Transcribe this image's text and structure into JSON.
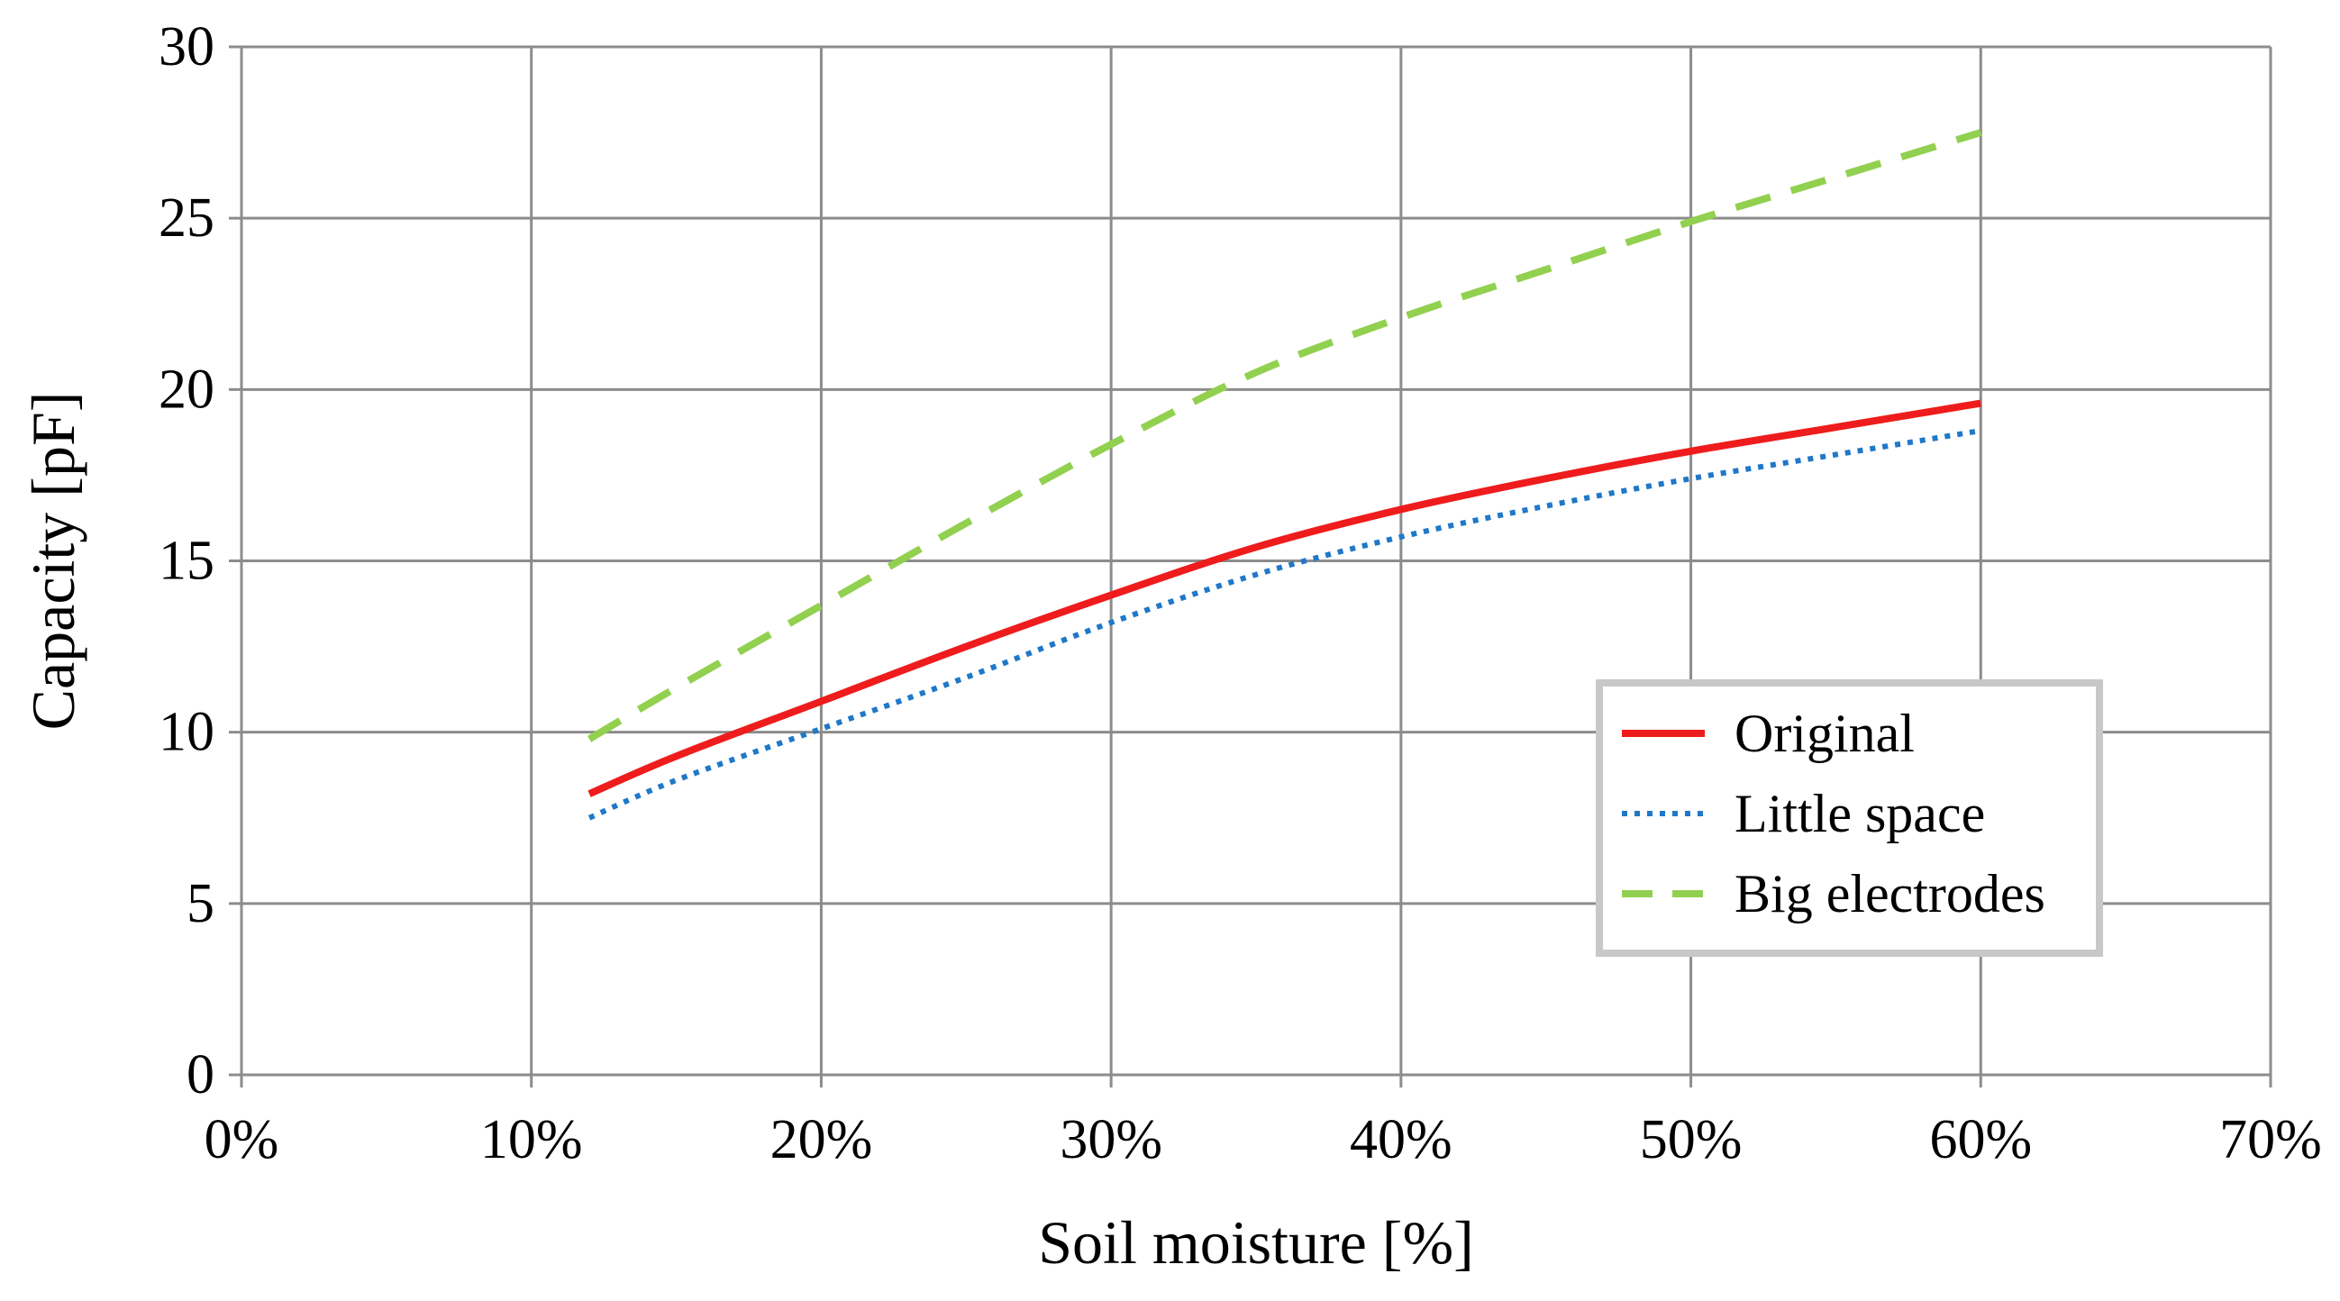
{
  "chart_data": {
    "type": "line",
    "title": "",
    "xlabel": "Soil moisture [%]",
    "ylabel": "Capacity [pF]",
    "xlim": [
      0,
      70
    ],
    "ylim": [
      0,
      30
    ],
    "x_ticks": [
      0,
      10,
      20,
      30,
      40,
      50,
      60,
      70
    ],
    "x_tick_labels": [
      "0%",
      "10%",
      "20%",
      "30%",
      "40%",
      "50%",
      "60%",
      "70%"
    ],
    "y_ticks": [
      0,
      5,
      10,
      15,
      20,
      25,
      30
    ],
    "y_tick_labels": [
      "0",
      "5",
      "10",
      "15",
      "20",
      "25",
      "30"
    ],
    "grid": true,
    "legend_position": "center-right",
    "series": [
      {
        "name": "Original",
        "color": "#ee1c1c",
        "style": "solid",
        "x": [
          12,
          15,
          20,
          25,
          30,
          35,
          40,
          45,
          50,
          55,
          60
        ],
        "y": [
          8.2,
          9.3,
          10.9,
          12.5,
          14.0,
          15.4,
          16.5,
          17.4,
          18.2,
          18.9,
          19.6
        ]
      },
      {
        "name": "Little space",
        "color": "#1f78c8",
        "style": "dotted",
        "x": [
          12,
          15,
          20,
          25,
          30,
          35,
          40,
          45,
          50,
          55,
          60
        ],
        "y": [
          7.5,
          8.6,
          10.1,
          11.6,
          13.2,
          14.6,
          15.7,
          16.6,
          17.4,
          18.1,
          18.8
        ]
      },
      {
        "name": "Big electrodes",
        "color": "#92d050",
        "style": "dashed",
        "x": [
          12,
          15,
          20,
          25,
          30,
          35,
          40,
          45,
          50,
          55,
          60
        ],
        "y": [
          9.8,
          11.3,
          13.7,
          16.1,
          18.4,
          20.5,
          22.1,
          23.5,
          24.9,
          26.2,
          27.5
        ]
      }
    ]
  }
}
